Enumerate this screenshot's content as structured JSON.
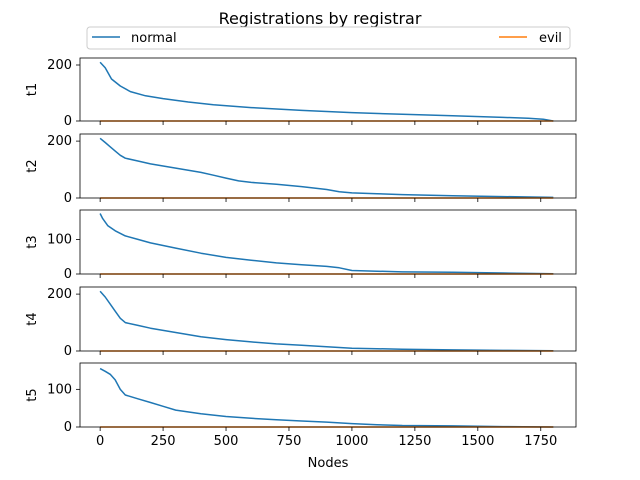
{
  "chart_data": {
    "type": "line",
    "title": "Registrations by registrar",
    "xlabel": "Nodes",
    "xlim": [
      -80,
      1890
    ],
    "x_ticks": [
      0,
      250,
      500,
      750,
      1000,
      1250,
      1500,
      1750
    ],
    "legend": {
      "placement": "top",
      "entries": [
        "normal",
        "evil"
      ]
    },
    "colors": {
      "normal": "#1f77b4",
      "evil": "#ff7f0e"
    },
    "grid": false,
    "sharex": true,
    "subplots": [
      {
        "ylabel": "t1",
        "ylim": [
          0,
          225
        ],
        "y_ticks": [
          0,
          200
        ],
        "series": [
          {
            "name": "normal",
            "x": [
              0,
              20,
              45,
              80,
              120,
              180,
              250,
              350,
              450,
              600,
              800,
              1000,
              1200,
              1400,
              1600,
              1700,
              1760,
              1800
            ],
            "y": [
              210,
              190,
              150,
              125,
              105,
              90,
              80,
              68,
              58,
              48,
              38,
              30,
              24,
              19,
              13,
              10,
              6,
              0
            ]
          },
          {
            "name": "evil",
            "x": [
              0,
              1800
            ],
            "y": [
              0,
              0
            ]
          }
        ]
      },
      {
        "ylabel": "t2",
        "ylim": [
          0,
          225
        ],
        "y_ticks": [
          0,
          200
        ],
        "series": [
          {
            "name": "normal",
            "x": [
              0,
              20,
              40,
              60,
              80,
              100,
              150,
              200,
              300,
              400,
              450,
              500,
              550,
              600,
              700,
              800,
              900,
              950,
              1000,
              1100,
              1200,
              1400,
              1600,
              1800
            ],
            "y": [
              210,
              195,
              180,
              165,
              150,
              140,
              130,
              120,
              105,
              90,
              80,
              70,
              60,
              55,
              48,
              40,
              30,
              22,
              18,
              15,
              12,
              8,
              5,
              2
            ]
          },
          {
            "name": "evil",
            "x": [
              0,
              1800
            ],
            "y": [
              0,
              0
            ]
          }
        ]
      },
      {
        "ylabel": "t3",
        "ylim": [
          0,
          185
        ],
        "y_ticks": [
          0,
          100
        ],
        "series": [
          {
            "name": "normal",
            "x": [
              0,
              10,
              30,
              60,
              100,
              150,
              200,
              300,
              400,
              500,
              600,
              700,
              800,
              900,
              950,
              1000,
              1100,
              1200,
              1400,
              1600,
              1800
            ],
            "y": [
              175,
              160,
              140,
              125,
              110,
              100,
              90,
              75,
              60,
              48,
              40,
              32,
              27,
              22,
              18,
              10,
              8,
              6,
              5,
              3,
              1
            ]
          },
          {
            "name": "evil",
            "x": [
              0,
              1800
            ],
            "y": [
              0,
              0
            ]
          }
        ]
      },
      {
        "ylabel": "t4",
        "ylim": [
          0,
          225
        ],
        "y_ticks": [
          0,
          200
        ],
        "series": [
          {
            "name": "normal",
            "x": [
              0,
              20,
              40,
              60,
              80,
              100,
              150,
              200,
              300,
              400,
              500,
              600,
              700,
              800,
              900,
              1000,
              1100,
              1200,
              1400,
              1600,
              1800
            ],
            "y": [
              210,
              190,
              165,
              140,
              115,
              100,
              90,
              80,
              65,
              50,
              40,
              32,
              25,
              20,
              15,
              10,
              8,
              6,
              4,
              2,
              1
            ]
          },
          {
            "name": "evil",
            "x": [
              0,
              1800
            ],
            "y": [
              0,
              0
            ]
          }
        ]
      },
      {
        "ylabel": "t5",
        "ylim": [
          0,
          170
        ],
        "y_ticks": [
          0,
          100
        ],
        "series": [
          {
            "name": "normal",
            "x": [
              0,
              20,
              40,
              60,
              80,
              100,
              150,
              200,
              250,
              300,
              400,
              500,
              600,
              700,
              800,
              900,
              1000,
              1100,
              1200,
              1400,
              1600,
              1800
            ],
            "y": [
              155,
              148,
              140,
              125,
              100,
              85,
              75,
              65,
              55,
              45,
              35,
              28,
              23,
              19,
              16,
              13,
              9,
              6,
              4,
              3,
              1,
              0
            ]
          },
          {
            "name": "evil",
            "x": [
              0,
              1800
            ],
            "y": [
              0,
              0
            ]
          }
        ]
      }
    ]
  }
}
